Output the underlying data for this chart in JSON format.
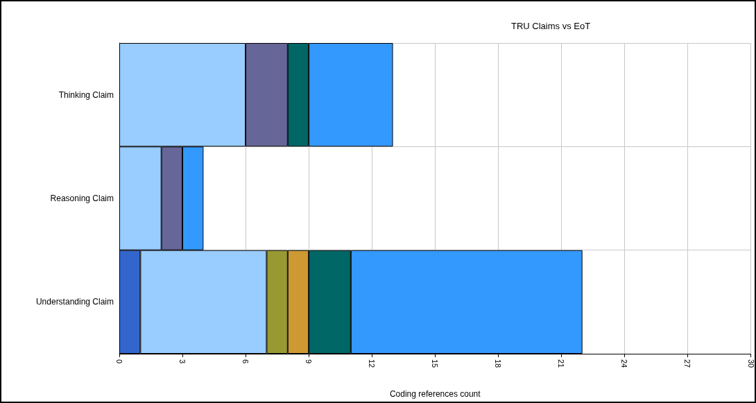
{
  "chart_data": {
    "type": "bar",
    "orientation": "horizontal",
    "stacked": true,
    "title": "TRU Claims vs EoT",
    "xlabel": "Coding references count",
    "categories": [
      "Thinking Claim",
      "Reasoning Claim",
      "Understanding Claim"
    ],
    "series": [
      {
        "color": "#3366cc",
        "values": [
          null,
          null,
          1
        ]
      },
      {
        "color": "#99ccff",
        "values": [
          6,
          2,
          6
        ]
      },
      {
        "color": "#666699",
        "values": [
          2,
          1,
          null
        ]
      },
      {
        "color": "#999933",
        "values": [
          null,
          null,
          1
        ]
      },
      {
        "color": "#cc9933",
        "values": [
          null,
          null,
          1
        ]
      },
      {
        "color": "#006666",
        "values": [
          1,
          null,
          2
        ]
      },
      {
        "color": "#3399ff",
        "values": [
          4,
          1,
          11
        ]
      }
    ],
    "xlim": [
      0,
      30
    ],
    "xticks": [
      0,
      3,
      6,
      9,
      12,
      15,
      18,
      21,
      24,
      27,
      30
    ],
    "grid": true
  }
}
